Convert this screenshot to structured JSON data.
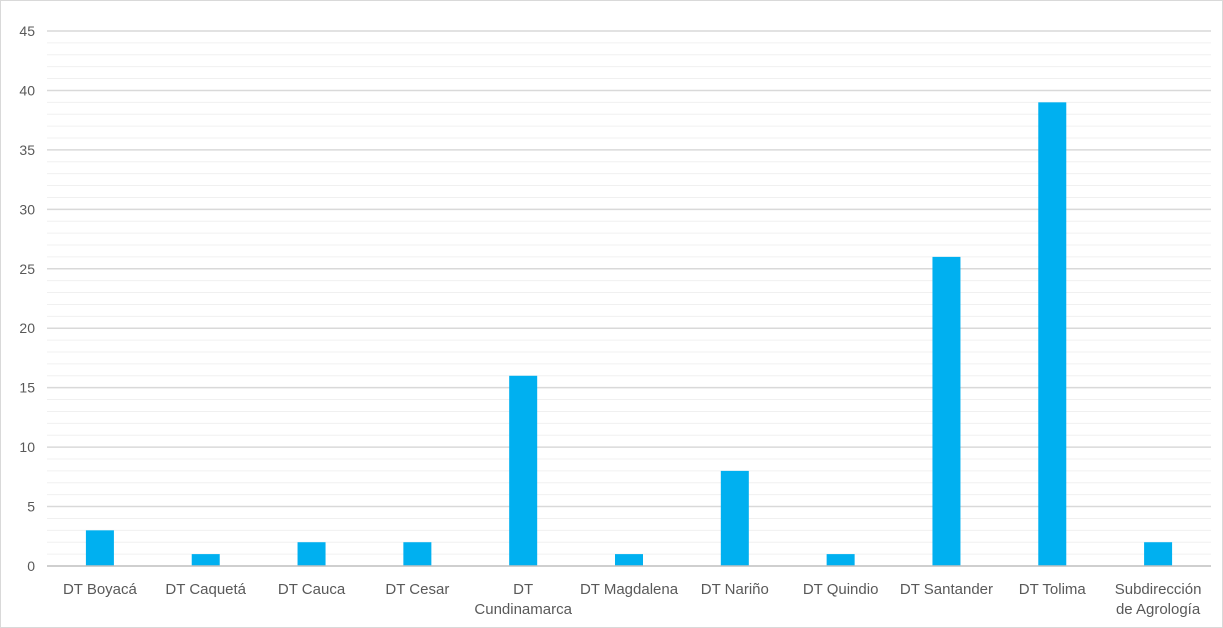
{
  "chart_data": {
    "type": "bar",
    "title": "",
    "xlabel": "",
    "ylabel": "",
    "categories": [
      [
        "DT Boyacá"
      ],
      [
        "DT Caquetá"
      ],
      [
        "DT Cauca"
      ],
      [
        "DT Cesar"
      ],
      [
        "DT",
        "Cundinamarca"
      ],
      [
        "DT Magdalena"
      ],
      [
        "DT Nariño"
      ],
      [
        "DT Quindio"
      ],
      [
        "DT Santander"
      ],
      [
        "DT Tolima"
      ],
      [
        "Subdirección",
        "de Agrología"
      ]
    ],
    "values": [
      3,
      1,
      2,
      2,
      16,
      1,
      8,
      1,
      26,
      39,
      2
    ],
    "ylim": [
      0,
      45
    ],
    "y_ticks": [
      0,
      5,
      10,
      15,
      20,
      25,
      30,
      35,
      40,
      45
    ],
    "minor_grid_step": 1,
    "grid": true,
    "legend": "none",
    "colors": {
      "bar": "#00b0f0",
      "major_grid": "#d9d9d9",
      "minor_grid": "#f0f0f0",
      "axis": "#bfbfbf",
      "text": "#595959"
    }
  }
}
